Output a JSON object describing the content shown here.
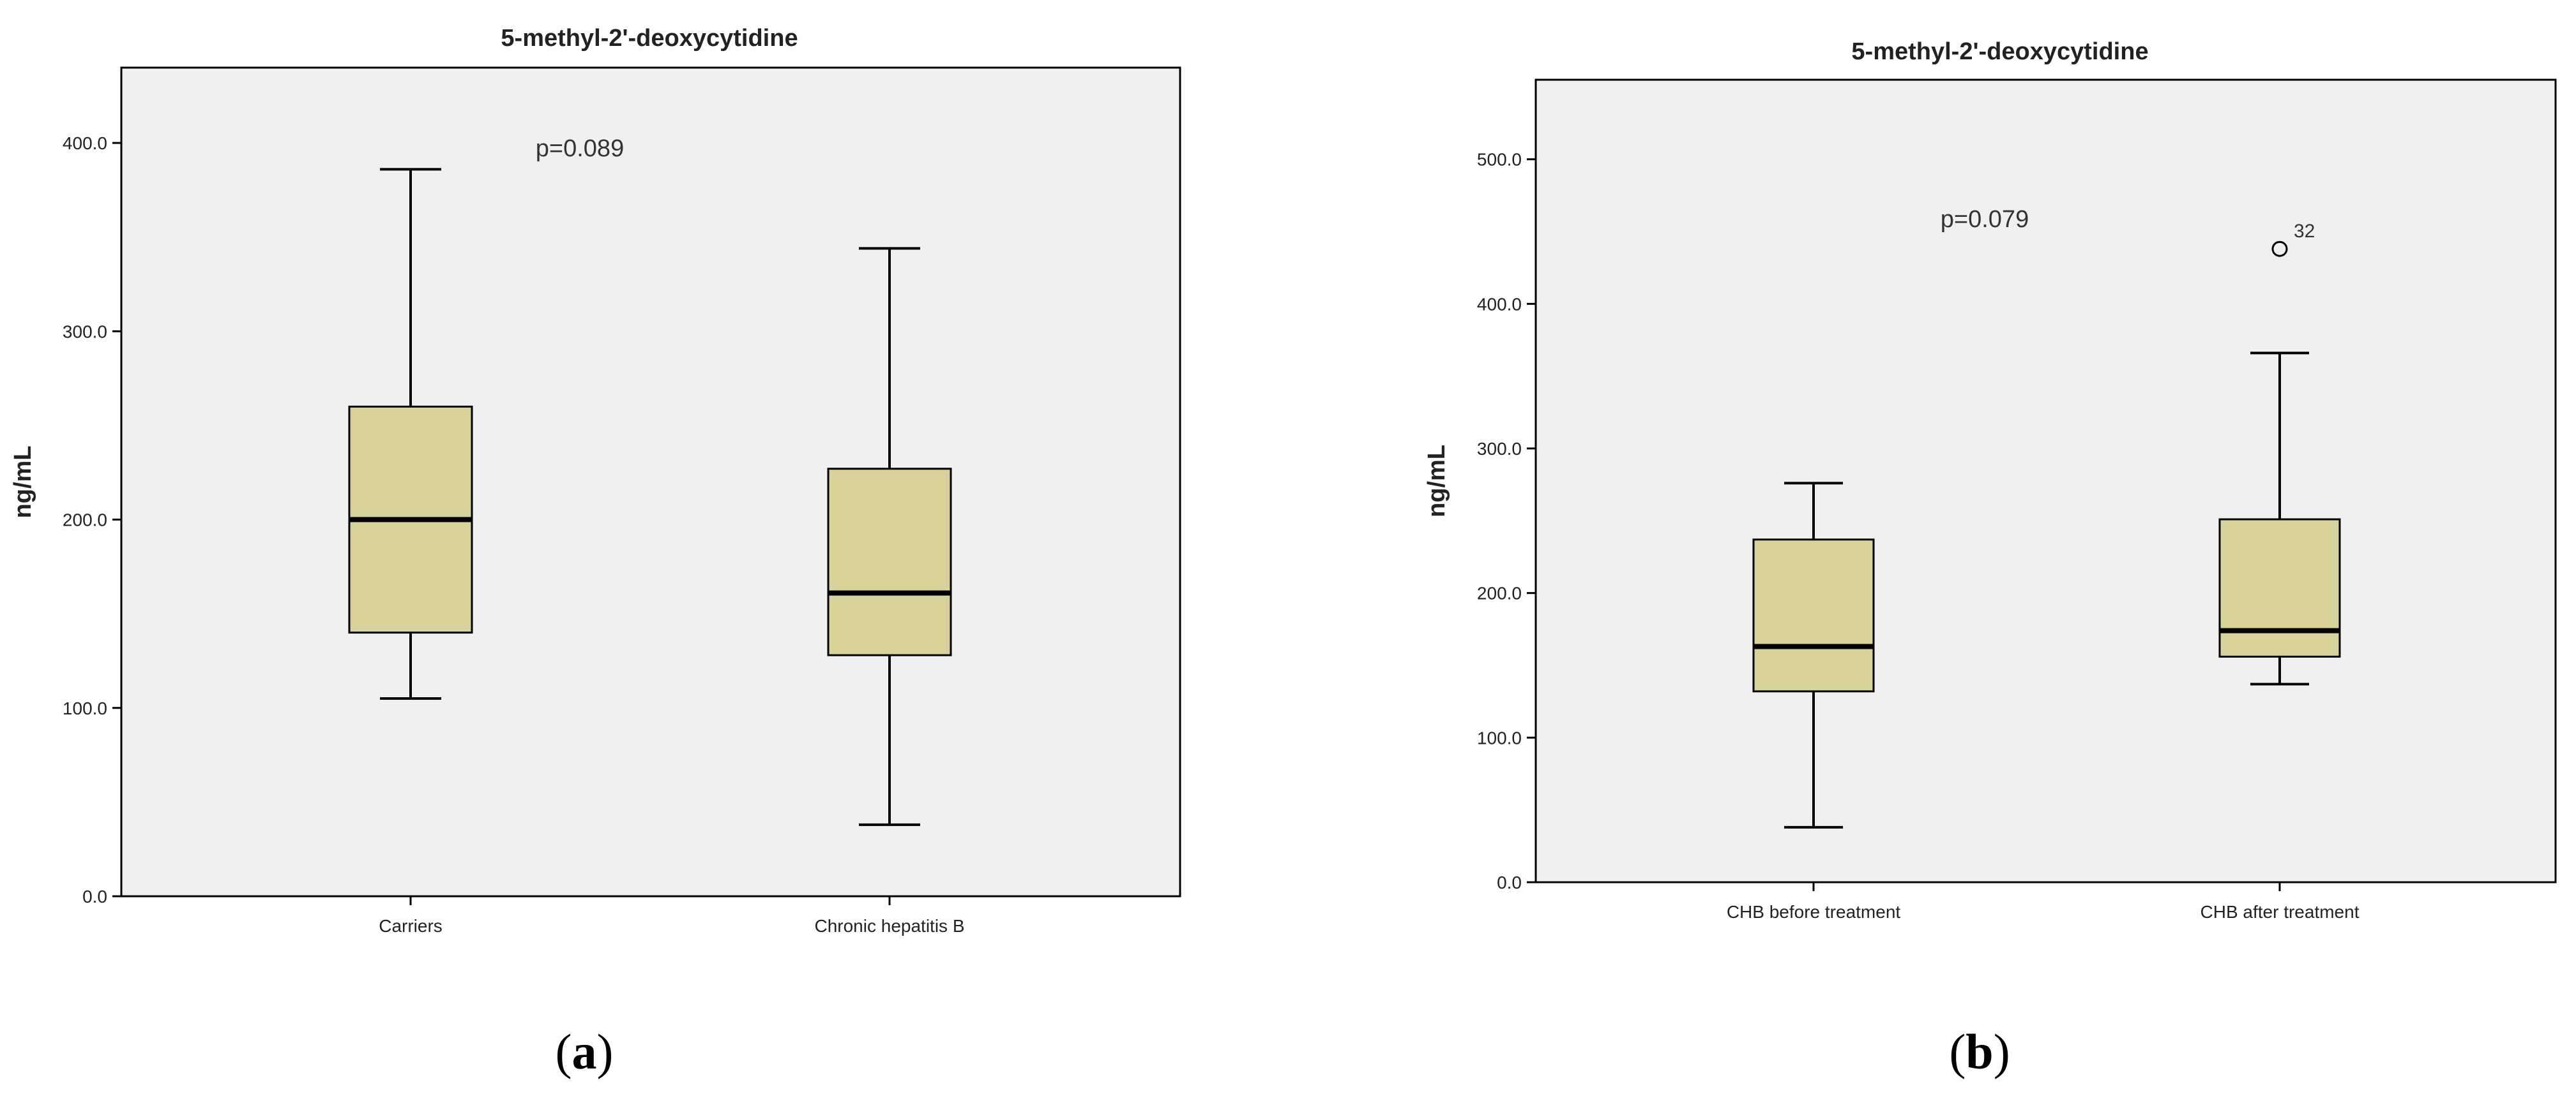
{
  "box_color": "#d8d29a",
  "plot_bg": "#f0f0f0",
  "chart_data": [
    {
      "type": "box",
      "panel_label": "a",
      "title": "5-methyl-2'-deoxycytidine",
      "ylabel": "ng/mL",
      "xlabel": "",
      "ylim": [
        0,
        440
      ],
      "yticks": [
        0,
        100,
        200,
        300,
        400
      ],
      "ytick_labels": [
        "0.0",
        "100.0",
        "200.0",
        "300.0",
        "400.0"
      ],
      "annotation": "p=0.089",
      "categories": [
        "Carriers",
        "Chronic hepatitis B"
      ],
      "boxes": [
        {
          "category": "Carriers",
          "min": 105,
          "q1": 140,
          "median": 200,
          "q3": 260,
          "max": 386,
          "outliers": []
        },
        {
          "category": "Chronic hepatitis B",
          "min": 38,
          "q1": 128,
          "median": 161,
          "q3": 227,
          "max": 344,
          "outliers": []
        }
      ]
    },
    {
      "type": "box",
      "panel_label": "b",
      "title": "5-methyl-2'-deoxycytidine",
      "ylabel": "ng/mL",
      "xlabel": "",
      "ylim": [
        0,
        555
      ],
      "yticks": [
        0,
        100,
        200,
        300,
        400,
        500
      ],
      "ytick_labels": [
        "0.0",
        "100.0",
        "200.0",
        "300.0",
        "400.0",
        "500.0"
      ],
      "annotation": "p=0.079",
      "categories": [
        "CHB before treatment",
        "CHB after treatment"
      ],
      "boxes": [
        {
          "category": "CHB before treatment",
          "min": 38,
          "q1": 132,
          "median": 163,
          "q3": 237,
          "max": 276,
          "outliers": []
        },
        {
          "category": "CHB after treatment",
          "min": 137,
          "q1": 156,
          "median": 174,
          "q3": 251,
          "max": 366,
          "outliers": [
            {
              "value": 438,
              "label": "32"
            }
          ]
        }
      ]
    }
  ]
}
